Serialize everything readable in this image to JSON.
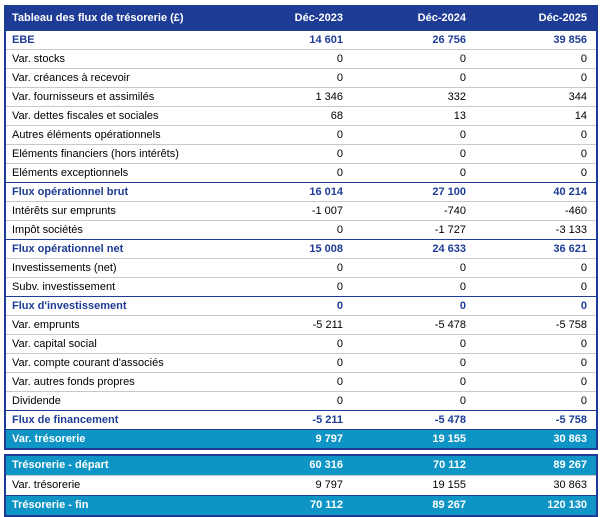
{
  "colors": {
    "header_navy": "#1e3c96",
    "highlight_cyan": "#0e95c6",
    "row_border_gray": "#c9c9c9",
    "body_text": "#000000",
    "header_text": "#ffffff"
  },
  "table1": {
    "title": "Tableau des flux de trésorerie (£)",
    "columns": [
      "Déc-2023",
      "Déc-2024",
      "Déc-2025"
    ],
    "rows": [
      {
        "label": "EBE",
        "values": [
          "14 601",
          "26 756",
          "39 856"
        ],
        "style": "subtotal"
      },
      {
        "label": "Var. stocks",
        "values": [
          "0",
          "0",
          "0"
        ],
        "style": "normal"
      },
      {
        "label": "Var. créances à recevoir",
        "values": [
          "0",
          "0",
          "0"
        ],
        "style": "normal"
      },
      {
        "label": "Var. fournisseurs et assimilés",
        "values": [
          "1 346",
          "332",
          "344"
        ],
        "style": "normal"
      },
      {
        "label": "Var. dettes fiscales et sociales",
        "values": [
          "68",
          "13",
          "14"
        ],
        "style": "normal"
      },
      {
        "label": "Autres éléments opérationnels",
        "values": [
          "0",
          "0",
          "0"
        ],
        "style": "normal"
      },
      {
        "label": "Eléments financiers (hors intérêts)",
        "values": [
          "0",
          "0",
          "0"
        ],
        "style": "normal"
      },
      {
        "label": "Eléments exceptionnels",
        "values": [
          "0",
          "0",
          "0"
        ],
        "style": "normal"
      },
      {
        "label": "Flux opérationnel brut",
        "values": [
          "16 014",
          "27 100",
          "40 214"
        ],
        "style": "subtotal"
      },
      {
        "label": "Intérêts sur emprunts",
        "values": [
          "-1 007",
          "-740",
          "-460"
        ],
        "style": "normal"
      },
      {
        "label": "Impôt sociétés",
        "values": [
          "0",
          "-1 727",
          "-3 133"
        ],
        "style": "normal"
      },
      {
        "label": "Flux opérationnel net",
        "values": [
          "15 008",
          "24 633",
          "36 621"
        ],
        "style": "subtotal"
      },
      {
        "label": "Investissements (net)",
        "values": [
          "0",
          "0",
          "0"
        ],
        "style": "normal"
      },
      {
        "label": "Subv. investissement",
        "values": [
          "0",
          "0",
          "0"
        ],
        "style": "normal"
      },
      {
        "label": "Flux d'investissement",
        "values": [
          "0",
          "0",
          "0"
        ],
        "style": "subtotal"
      },
      {
        "label": "Var. emprunts",
        "values": [
          "-5 211",
          "-5 478",
          "-5 758"
        ],
        "style": "normal"
      },
      {
        "label": "Var. capital social",
        "values": [
          "0",
          "0",
          "0"
        ],
        "style": "normal"
      },
      {
        "label": "Var. compte courant d'associés",
        "values": [
          "0",
          "0",
          "0"
        ],
        "style": "normal"
      },
      {
        "label": "Var. autres fonds propres",
        "values": [
          "0",
          "0",
          "0"
        ],
        "style": "normal"
      },
      {
        "label": "Dividende",
        "values": [
          "0",
          "0",
          "0"
        ],
        "style": "normal"
      },
      {
        "label": "Flux de financement",
        "values": [
          "-5 211",
          "-5 478",
          "-5 758"
        ],
        "style": "subtotal"
      },
      {
        "label": "Var. trésorerie",
        "values": [
          "9 797",
          "19 155",
          "30 863"
        ],
        "style": "highlight"
      }
    ]
  },
  "table2": {
    "rows": [
      {
        "label": "Trésorerie - départ",
        "values": [
          "60 316",
          "70 112",
          "89 267"
        ],
        "style": "highlight"
      },
      {
        "label": "Var. trésorerie",
        "values": [
          "9 797",
          "19 155",
          "30 863"
        ],
        "style": "normal"
      },
      {
        "label": "Trésorerie - fin",
        "values": [
          "70 112",
          "89 267",
          "120 130"
        ],
        "style": "highlight"
      }
    ]
  }
}
